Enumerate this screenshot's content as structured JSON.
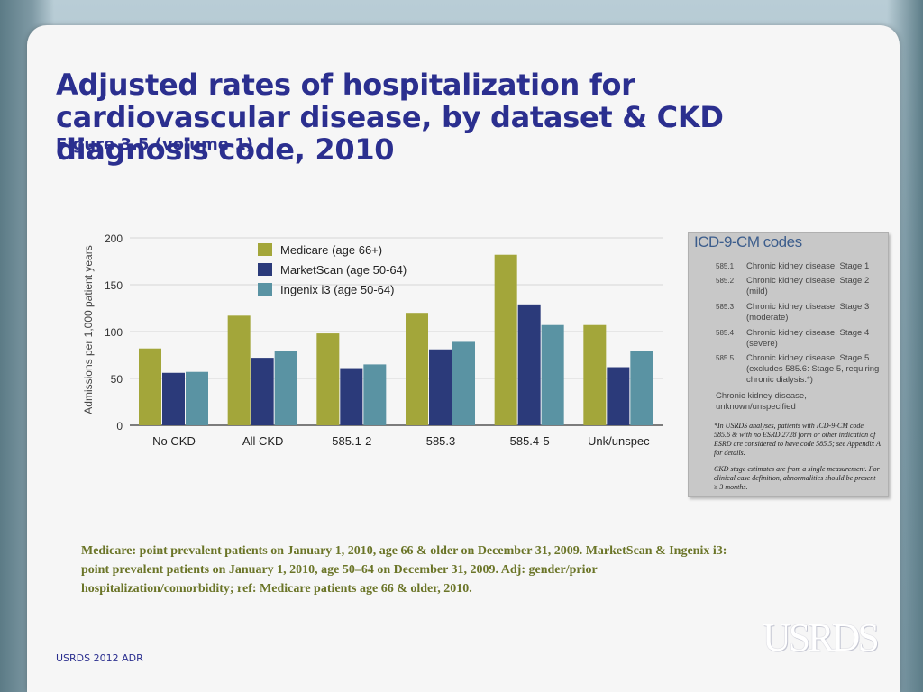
{
  "title": "Adjusted rates of hospitalization for cardiovascular disease, by dataset & CKD diagnosis code, 2010",
  "subtitle": "Figure 3.5 (volume 1)",
  "chart_data": {
    "type": "bar",
    "title": "",
    "xlabel": "",
    "ylabel": "Admissions per 1,000 patient years",
    "ylim": [
      0,
      200
    ],
    "yticks": [
      0,
      50,
      100,
      150,
      200
    ],
    "categories": [
      "No CKD",
      "All CKD",
      "585.1-2",
      "585.3",
      "585.4-5",
      "Unk/unspec"
    ],
    "series": [
      {
        "name": "Medicare (age 66+)",
        "color": "#a3a63a",
        "values": [
          82,
          117,
          98,
          120,
          182,
          107
        ]
      },
      {
        "name": "MarketScan (age 50-64)",
        "color": "#2b3a7a",
        "values": [
          56,
          72,
          61,
          81,
          129,
          62
        ]
      },
      {
        "name": "Ingenix i3 (age 50-64)",
        "color": "#5a93a3",
        "values": [
          57,
          79,
          65,
          89,
          107,
          79
        ]
      }
    ],
    "legend_position": "top-center"
  },
  "icd": {
    "title": "ICD-9-CM codes",
    "rows": [
      {
        "code": "585.1",
        "desc": "Chronic kidney disease, Stage 1"
      },
      {
        "code": "585.2",
        "desc": "Chronic kidney disease, Stage 2 (mild)"
      },
      {
        "code": "585.3",
        "desc": "Chronic kidney disease, Stage 3 (moderate)"
      },
      {
        "code": "585.4",
        "desc": "Chronic kidney disease, Stage 4 (severe)"
      },
      {
        "code": "585.5",
        "desc": "Chronic kidney disease, Stage 5 (excludes 585.6: Stage 5, requiring chronic dialysis.*)"
      }
    ],
    "unknown": "Chronic kidney disease, unknown/unspecified",
    "note1": "*In USRDS analyses, patients with ICD-9-CM code 585.6 & with no ESRD 2728 form or other indication of ESRD are considered to have code 585.5; see Appendix A for details.",
    "note2": "CKD stage estimates are from a single measurement. For clinical case definition, abnormalities should be present ≥ 3 months."
  },
  "caption": "Medicare: point prevalent patients on January 1, 2010, age 66 & older on December 31, 2009. MarketScan & Ingenix i3: point prevalent patients on January 1, 2010, age 50–64 on December 31, 2009. Adj: gender/prior hospitalization/comorbidity; ref: Medicare patients age 66 & older, 2010.",
  "footer": "USRDS 2012 ADR",
  "logo": "USRDS"
}
